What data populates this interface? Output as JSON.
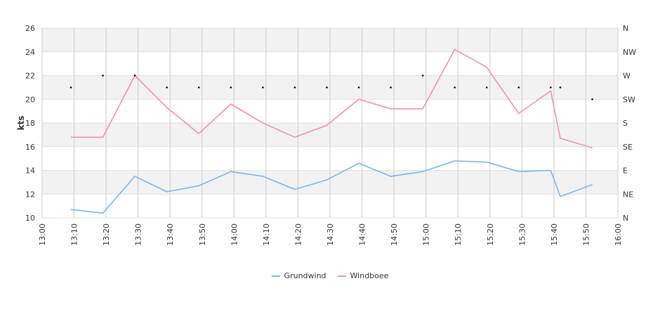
{
  "chart_data": {
    "type": "line",
    "ylabel": "kts",
    "y_ticks": [
      "10",
      "12",
      "14",
      "16",
      "18",
      "20",
      "22",
      "24",
      "26"
    ],
    "ylim": [
      10,
      26
    ],
    "x_ticks": [
      "13:00",
      "13:10",
      "13:20",
      "13:30",
      "13:40",
      "13:50",
      "14:00",
      "14:10",
      "14:20",
      "14:30",
      "14:40",
      "14:50",
      "15:00",
      "15:10",
      "15:20",
      "15:30",
      "15:40",
      "15:50",
      "16:00"
    ],
    "xlim": [
      "13:00",
      "16:00"
    ],
    "direction_ticks": [
      "N",
      "NE",
      "E",
      "SE",
      "S",
      "SW",
      "W",
      "NW",
      "N"
    ],
    "direction_range": [
      0,
      360
    ],
    "grid": true,
    "legend_position": "bottom-center",
    "series": [
      {
        "name": "Grundwind",
        "color": "#7cb5ec",
        "x": [
          "13:09",
          "13:19",
          "13:29",
          "13:39",
          "13:49",
          "13:59",
          "14:09",
          "14:19",
          "14:29",
          "14:39",
          "14:49",
          "14:59",
          "15:09",
          "15:19",
          "15:29",
          "15:39",
          "15:42",
          "15:52"
        ],
        "y": [
          10.7,
          10.4,
          13.5,
          12.2,
          12.7,
          13.9,
          13.5,
          12.4,
          13.2,
          14.6,
          13.5,
          13.9,
          14.8,
          14.7,
          13.9,
          14.0,
          11.8,
          12.8
        ]
      },
      {
        "name": "Windboee",
        "color": "#f28fb5",
        "x": [
          "13:09",
          "13:19",
          "13:29",
          "13:39",
          "13:49",
          "13:59",
          "14:09",
          "14:19",
          "14:29",
          "14:39",
          "14:49",
          "14:59",
          "15:09",
          "15:19",
          "15:29",
          "15:39",
          "15:42",
          "15:52"
        ],
        "y": [
          16.8,
          16.8,
          22.0,
          19.3,
          17.1,
          19.6,
          18.0,
          16.8,
          17.8,
          20.0,
          19.2,
          19.2,
          24.2,
          22.7,
          18.8,
          20.7,
          16.7,
          15.9
        ]
      },
      {
        "name": "direction",
        "color": "#000000",
        "x": [
          "13:09",
          "13:19",
          "13:29",
          "13:39",
          "13:49",
          "13:59",
          "14:09",
          "14:19",
          "14:29",
          "14:39",
          "14:49",
          "14:59",
          "15:09",
          "15:19",
          "15:29",
          "15:39",
          "15:42",
          "15:52"
        ],
        "y_degrees": [
          247.5,
          270,
          270,
          247.5,
          247.5,
          247.5,
          247.5,
          247.5,
          247.5,
          247.5,
          247.5,
          270,
          247.5,
          247.5,
          247.5,
          247.5,
          247.5,
          225
        ]
      }
    ]
  }
}
